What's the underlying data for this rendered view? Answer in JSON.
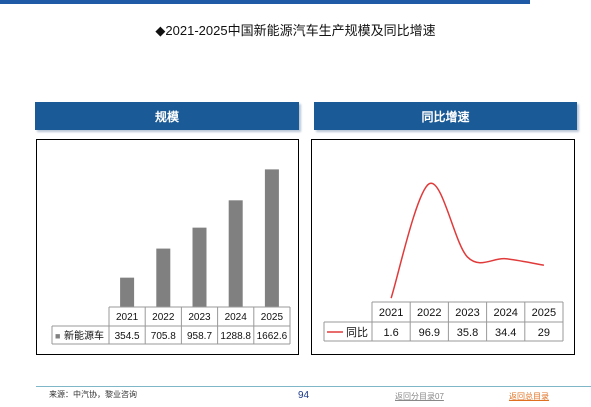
{
  "page": {
    "title": "◆2021-2025中国新能源汽车生产规模及同比增速",
    "footer": {
      "source": "来源：中汽协，黎业咨询",
      "page_number": "94",
      "link_section": "返回分目录07",
      "link_main": "返回总目录"
    }
  },
  "colors": {
    "header_bg": "#1a5a96",
    "bar": "#808080",
    "line": "#e03a3a"
  },
  "chart_data": [
    {
      "type": "bar",
      "header": "规模",
      "categories": [
        "2021",
        "2022",
        "2023",
        "2024",
        "2025"
      ],
      "series": [
        {
          "name": "新能源车",
          "values": [
            354.5,
            705.8,
            958.7,
            1288.8,
            1662.6
          ],
          "labels": [
            "354.5",
            "705.8",
            "958.7",
            "1288.8",
            "1662.6"
          ]
        }
      ],
      "legend_marker": "■",
      "ylim": [
        0,
        1800
      ],
      "grid": false
    },
    {
      "type": "line",
      "header": "同比增速",
      "categories": [
        "2021",
        "2022",
        "2023",
        "2024",
        "2025"
      ],
      "series": [
        {
          "name": "同比",
          "values": [
            1.6,
            96.9,
            35.8,
            34.4,
            29
          ],
          "labels": [
            "1.6",
            "96.9",
            "35.8",
            "34.4",
            "29"
          ]
        }
      ],
      "legend_marker": "line",
      "ylim": [
        0,
        100
      ],
      "grid": false
    }
  ]
}
